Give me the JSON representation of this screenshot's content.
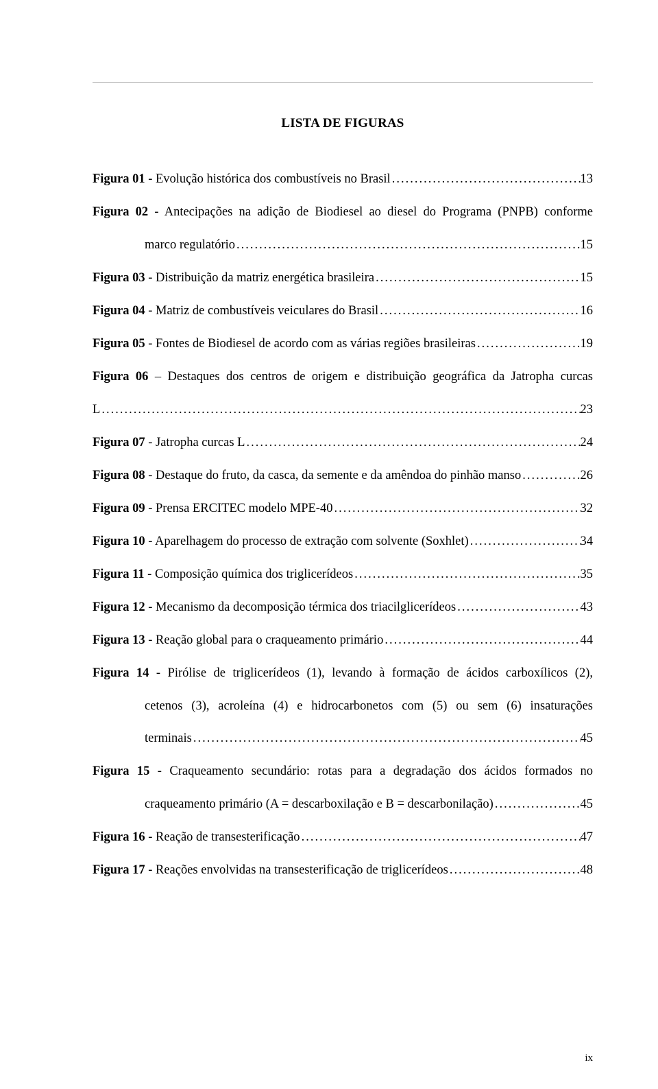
{
  "title": "LISTA DE FIGURAS",
  "page_number": "ix",
  "entries": [
    {
      "label": "Figura 01",
      "desc": " - Evolução histórica dos combustíveis no Brasil",
      "page": "13",
      "continuation": []
    },
    {
      "label": "Figura 02",
      "desc": " - Antecipações na adição de Biodiesel ao diesel do Programa (PNPB) conforme",
      "page": "",
      "continuation": [
        {
          "text": "marco regulatório",
          "page": "15"
        }
      ]
    },
    {
      "label": "Figura 03",
      "desc": " - Distribuição da matriz energética brasileira",
      "page": "15",
      "continuation": []
    },
    {
      "label": "Figura 04",
      "desc": " - Matriz de combustíveis veiculares do Brasil",
      "page": "16",
      "continuation": []
    },
    {
      "label": "Figura 05",
      "desc": " - Fontes de Biodiesel de acordo com as várias regiões brasileiras",
      "page": "19",
      "continuation": []
    },
    {
      "label": "Figura 06",
      "desc": " – Destaques dos centros de origem e distribuição geográfica da Jatropha curcas",
      "page": "",
      "continuation": [
        {
          "text": "L",
          "page": "23",
          "nopad": true
        }
      ],
      "nogap_first": true
    },
    {
      "label": "Figura 07",
      "desc": " - Jatropha curcas L",
      "page": "24",
      "continuation": []
    },
    {
      "label": "Figura 08",
      "desc": " - Destaque do fruto, da casca, da semente e da amêndoa do pinhão manso",
      "page": "26",
      "continuation": []
    },
    {
      "label": "Figura 09",
      "desc": " - Prensa ERCITEC modelo MPE-40",
      "page": "32",
      "continuation": []
    },
    {
      "label": "Figura 10",
      "desc": " - Aparelhagem do processo de extração com solvente (Soxhlet)",
      "page": "34",
      "continuation": []
    },
    {
      "label": "Figura 11",
      "desc": " - Composição química dos triglicerídeos",
      "page": "35",
      "continuation": []
    },
    {
      "label": "Figura 12",
      "desc": " - Mecanismo da decomposição térmica dos triacilglicerídeos",
      "page": "43",
      "continuation": []
    },
    {
      "label": "Figura 13",
      "desc": " - Reação global para o craqueamento primário",
      "page": "44",
      "continuation": []
    },
    {
      "label": "Figura 14",
      "desc": " - Pirólise de triglicerídeos (1), levando à formação de ácidos carboxílicos (2),",
      "page": "",
      "continuation": [
        {
          "text": "cetenos (3), acroleína (4) e hidrocarbonetos com (5) ou sem (6) insaturações",
          "page": ""
        },
        {
          "text": "terminais",
          "page": "45"
        }
      ]
    },
    {
      "label": "Figura 15",
      "desc": " - Craqueamento secundário: rotas para a degradação dos ácidos formados no",
      "page": "",
      "continuation": [
        {
          "text": "craqueamento primário (A = descarboxilação e B = descarbonilação)",
          "page": "45"
        }
      ]
    },
    {
      "label": "Figura 16",
      "desc": " - Reação de transesterificação",
      "page": "47",
      "continuation": []
    },
    {
      "label": "Figura 17",
      "desc": " - Reações envolvidas na transesterificação de triglicerídeos",
      "page": "48",
      "continuation": []
    }
  ],
  "leader_str": "............................................................................................................................................................................................................"
}
